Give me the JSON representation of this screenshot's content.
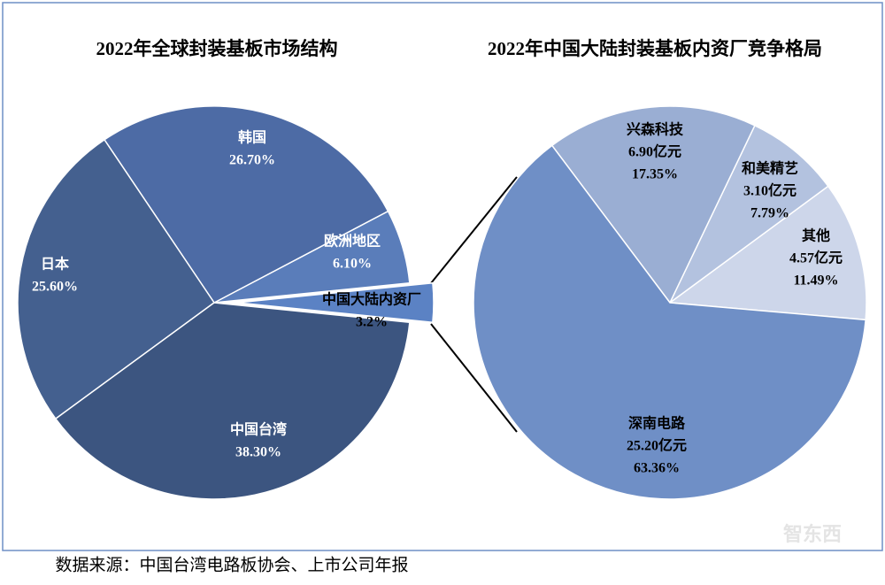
{
  "chart_data": [
    {
      "type": "pie",
      "title": "2022年全球封装基板市场结构",
      "categories": [
        "中国大陆内资厂",
        "欧洲地区",
        "韩国",
        "日本",
        "中国台湾"
      ],
      "values": [
        3.2,
        6.1,
        26.7,
        25.6,
        38.3
      ],
      "value_labels": [
        "3.2%",
        "6.10%",
        "26.70%",
        "25.60%",
        "38.30%"
      ],
      "colors": [
        "#5b82c4",
        "#5a7dba",
        "#4d6ba5",
        "#44608f",
        "#3c5580"
      ]
    },
    {
      "type": "pie",
      "title": "2022年中国大陆封装基板内资厂竞争格局",
      "categories": [
        "其他",
        "和美精艺",
        "兴森科技",
        "深南电路"
      ],
      "values": [
        11.49,
        7.79,
        17.35,
        63.36
      ],
      "value_labels": [
        "11.49%",
        "7.79%",
        "17.35%",
        "63.36%"
      ],
      "amounts": [
        4.57,
        3.1,
        6.9,
        25.2
      ],
      "amount_labels": [
        "4.57亿元",
        "3.10亿元",
        "6.90亿元",
        "25.20亿元"
      ],
      "colors": [
        "#cdd6ea",
        "#b3c2df",
        "#9aaed3",
        "#6f8fc6"
      ]
    }
  ],
  "source": "数据来源：中国台湾电路板协会、上市公司年报",
  "watermark": "智东西"
}
